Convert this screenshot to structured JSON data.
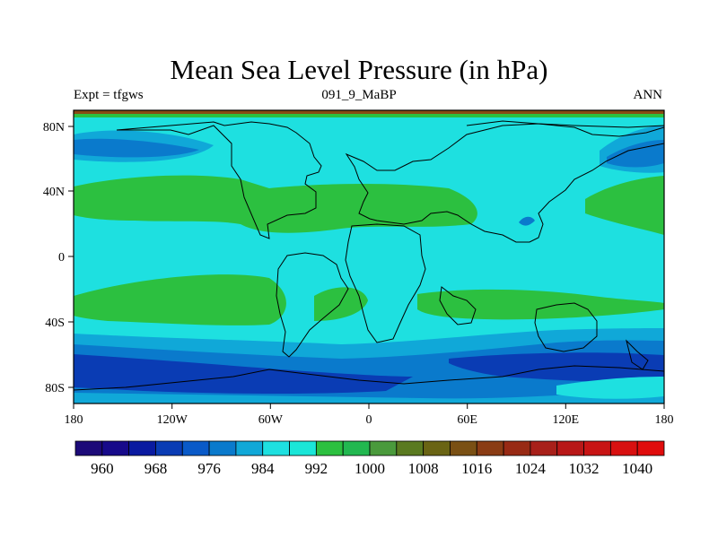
{
  "title": "Mean Sea Level Pressure (in hPa)",
  "left_label": "Expt = tfgws",
  "center_label": "091_9_MaBP",
  "right_label": "ANN",
  "x_ticks": [
    "180",
    "120W",
    "60W",
    "0",
    "60E",
    "120E",
    "180"
  ],
  "y_ticks": [
    "80N",
    "40N",
    "0",
    "40S",
    "80S"
  ],
  "colorbar": {
    "labels": [
      "960",
      "968",
      "976",
      "984",
      "992",
      "1000",
      "1008",
      "1016",
      "1024",
      "1032",
      "1040"
    ],
    "colors": [
      "#1c0a78",
      "#170a8a",
      "#0a1aa0",
      "#0a3cb4",
      "#0a5ac8",
      "#0a7acc",
      "#10a8d8",
      "#1ee0e0",
      "#1ae6d8",
      "#2cc040",
      "#22b850",
      "#4a9a3c",
      "#5a7a20",
      "#6a6414",
      "#7a5014",
      "#8a3c14",
      "#982a14",
      "#a8201a",
      "#b81818",
      "#c81414",
      "#d81010",
      "#e00c0c"
    ]
  },
  "colors": {
    "background_field": "#1ee0e0",
    "high_band": "#2cc040",
    "low_band": "#0a7acc",
    "deep_low": "#0a3cb4",
    "mid_low": "#10a8d8",
    "edge": "#8a4a14"
  }
}
